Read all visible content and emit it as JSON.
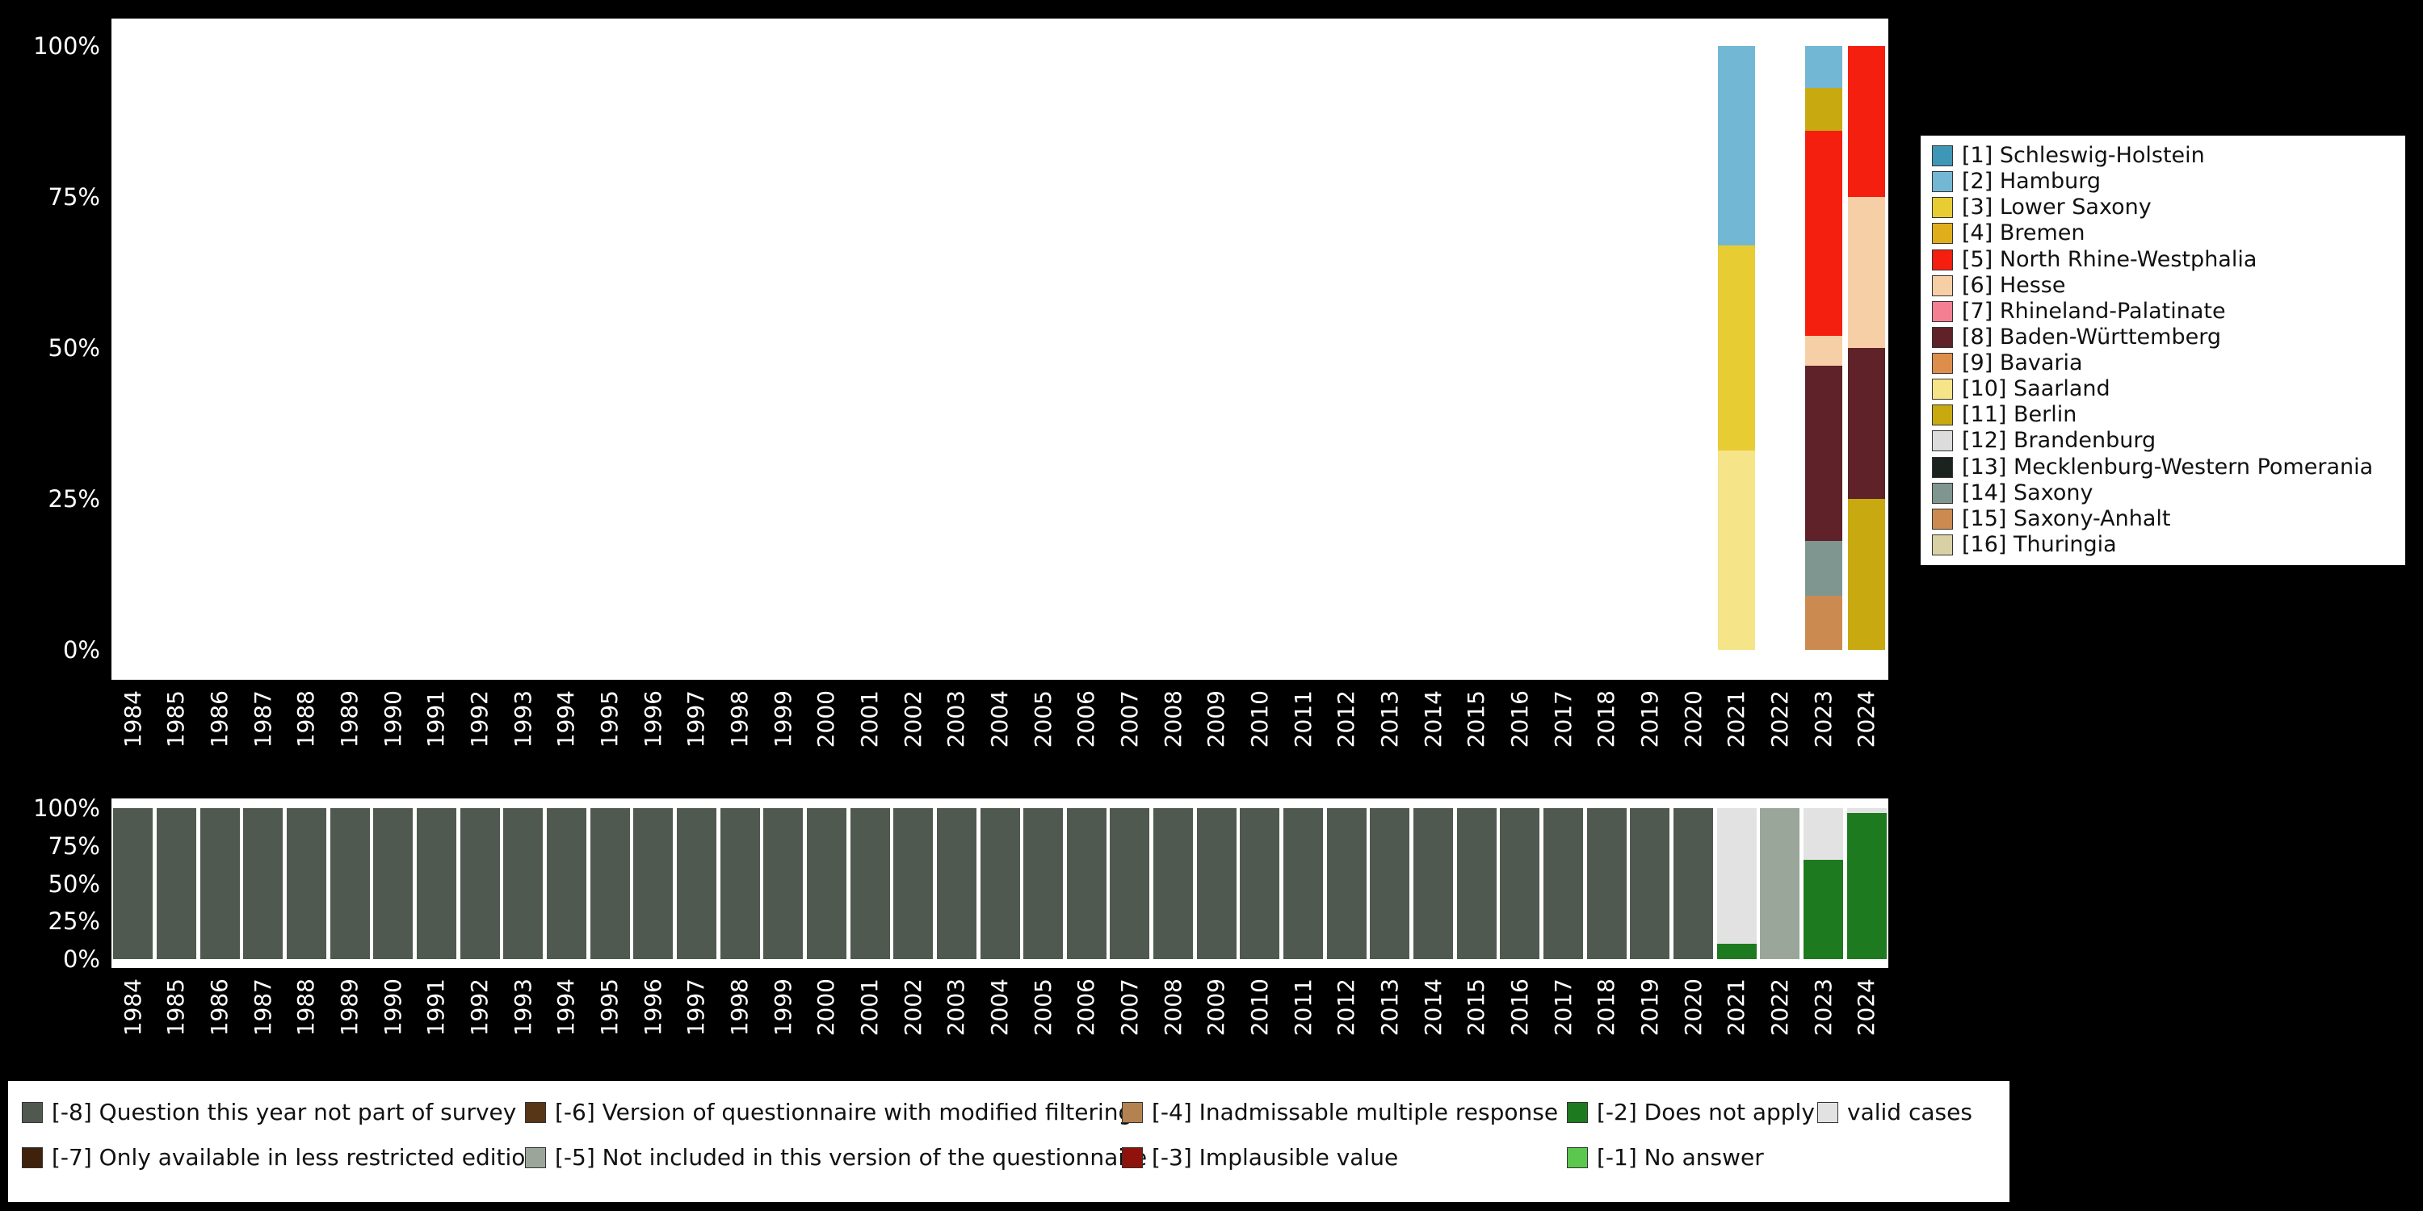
{
  "page": {
    "background": "#000000",
    "text_color": "#ffffff"
  },
  "chart_data": [
    {
      "type": "bar",
      "subtype": "stacked-percent",
      "title": "",
      "xlabel": "",
      "ylabel": "",
      "ylim": [
        0,
        100
      ],
      "grid": false,
      "legend_position": "right",
      "yticks": [
        "100%",
        "75%",
        "50%",
        "25%",
        "0%"
      ],
      "categories": [
        "1984",
        "1985",
        "1986",
        "1987",
        "1988",
        "1989",
        "1990",
        "1991",
        "1992",
        "1993",
        "1994",
        "1995",
        "1996",
        "1997",
        "1998",
        "1999",
        "2000",
        "2001",
        "2002",
        "2003",
        "2004",
        "2005",
        "2006",
        "2007",
        "2008",
        "2009",
        "2010",
        "2011",
        "2012",
        "2013",
        "2014",
        "2015",
        "2016",
        "2017",
        "2018",
        "2019",
        "2020",
        "2021",
        "2022",
        "2023",
        "2024"
      ],
      "legend": [
        {
          "label": "[1] Schleswig-Holstein",
          "color": "#3F97B7"
        },
        {
          "label": "[2] Hamburg",
          "color": "#72B8D4"
        },
        {
          "label": "[3] Lower Saxony",
          "color": "#E8CC33"
        },
        {
          "label": "[4] Bremen",
          "color": "#DFAE1C"
        },
        {
          "label": "[5] North Rhine-Westphalia",
          "color": "#F51F10"
        },
        {
          "label": "[6] Hesse",
          "color": "#F7CFA6"
        },
        {
          "label": "[7] Rhineland-Palatinate",
          "color": "#F57F92"
        },
        {
          "label": "[8] Baden-Württemberg",
          "color": "#5E2228"
        },
        {
          "label": "[9] Bavaria",
          "color": "#DD8E4C"
        },
        {
          "label": "[10] Saarland",
          "color": "#F6E488"
        },
        {
          "label": "[11] Berlin",
          "color": "#C8A90F"
        },
        {
          "label": "[12] Brandenburg",
          "color": "#DCDCDC"
        },
        {
          "label": "[13] Mecklenburg-Western Pomerania",
          "color": "#1B231F"
        },
        {
          "label": "[14] Saxony",
          "color": "#7E968F"
        },
        {
          "label": "[15] Saxony-Anhalt",
          "color": "#CB8B50"
        },
        {
          "label": "[16] Thuringia",
          "color": "#D9D1A4"
        }
      ],
      "bars": {
        "2021": [
          {
            "label": "[2] Hamburg",
            "value": 33
          },
          {
            "label": "[3] Lower Saxony",
            "value": 34
          },
          {
            "label": "[10] Saarland",
            "value": 33
          }
        ],
        "2023": [
          {
            "label": "[2] Hamburg",
            "value": 7
          },
          {
            "label": "[11] Berlin",
            "value": 7
          },
          {
            "label": "[5] North Rhine-Westphalia",
            "value": 34
          },
          {
            "label": "[6] Hesse",
            "value": 5
          },
          {
            "label": "[8] Baden-Württemberg",
            "value": 29
          },
          {
            "label": "[14] Saxony",
            "value": 9
          },
          {
            "label": "[15] Saxony-Anhalt",
            "value": 9
          }
        ],
        "2024": [
          {
            "label": "[5] North Rhine-Westphalia",
            "value": 25
          },
          {
            "label": "[6] Hesse",
            "value": 25
          },
          {
            "label": "[8] Baden-Württemberg",
            "value": 25
          },
          {
            "label": "[11] Berlin",
            "value": 25
          }
        ]
      }
    },
    {
      "type": "bar",
      "subtype": "stacked-percent",
      "title": "",
      "xlabel": "",
      "ylabel": "",
      "ylim": [
        0,
        100
      ],
      "grid": false,
      "legend_position": "bottom",
      "yticks": [
        "100%",
        "75%",
        "50%",
        "25%",
        "0%"
      ],
      "categories": [
        "1984",
        "1985",
        "1986",
        "1987",
        "1988",
        "1989",
        "1990",
        "1991",
        "1992",
        "1993",
        "1994",
        "1995",
        "1996",
        "1997",
        "1998",
        "1999",
        "2000",
        "2001",
        "2002",
        "2003",
        "2004",
        "2005",
        "2006",
        "2007",
        "2008",
        "2009",
        "2010",
        "2011",
        "2012",
        "2013",
        "2014",
        "2015",
        "2016",
        "2017",
        "2018",
        "2019",
        "2020",
        "2021",
        "2022",
        "2023",
        "2024"
      ],
      "legend": [
        {
          "label": "[-8] Question this year not part of survey",
          "color": "#50594F"
        },
        {
          "label": "[-7] Only available in less restricted edition",
          "color": "#40220C"
        },
        {
          "label": "[-6] Version of questionnaire with modified filtering",
          "color": "#573517"
        },
        {
          "label": "[-5] Not included in this version of the questionnaire",
          "color": "#9BA69B"
        },
        {
          "label": "[-4] Inadmissable multiple response",
          "color": "#B48150"
        },
        {
          "label": "[-3] Implausible value",
          "color": "#8F130C"
        },
        {
          "label": "[-2] Does not apply",
          "color": "#1E7A1E"
        },
        {
          "label": "[-1] No answer",
          "color": "#5BC84D"
        },
        {
          "label": "valid cases",
          "color": "#E2E2E2"
        }
      ],
      "bars_default": [
        {
          "label": "[-8] Question this year not part of survey",
          "value": 100
        }
      ],
      "bars": {
        "2021": [
          {
            "label": "valid cases",
            "value": 90
          },
          {
            "label": "[-2] Does not apply",
            "value": 10
          }
        ],
        "2022": [
          {
            "label": "[-5] Not included in this version of the questionnaire",
            "value": 100
          }
        ],
        "2023": [
          {
            "label": "valid cases",
            "value": 34
          },
          {
            "label": "[-2] Does not apply",
            "value": 66
          }
        ],
        "2024": [
          {
            "label": "valid cases",
            "value": 3
          },
          {
            "label": "[-2] Does not apply",
            "value": 97
          }
        ]
      }
    }
  ]
}
